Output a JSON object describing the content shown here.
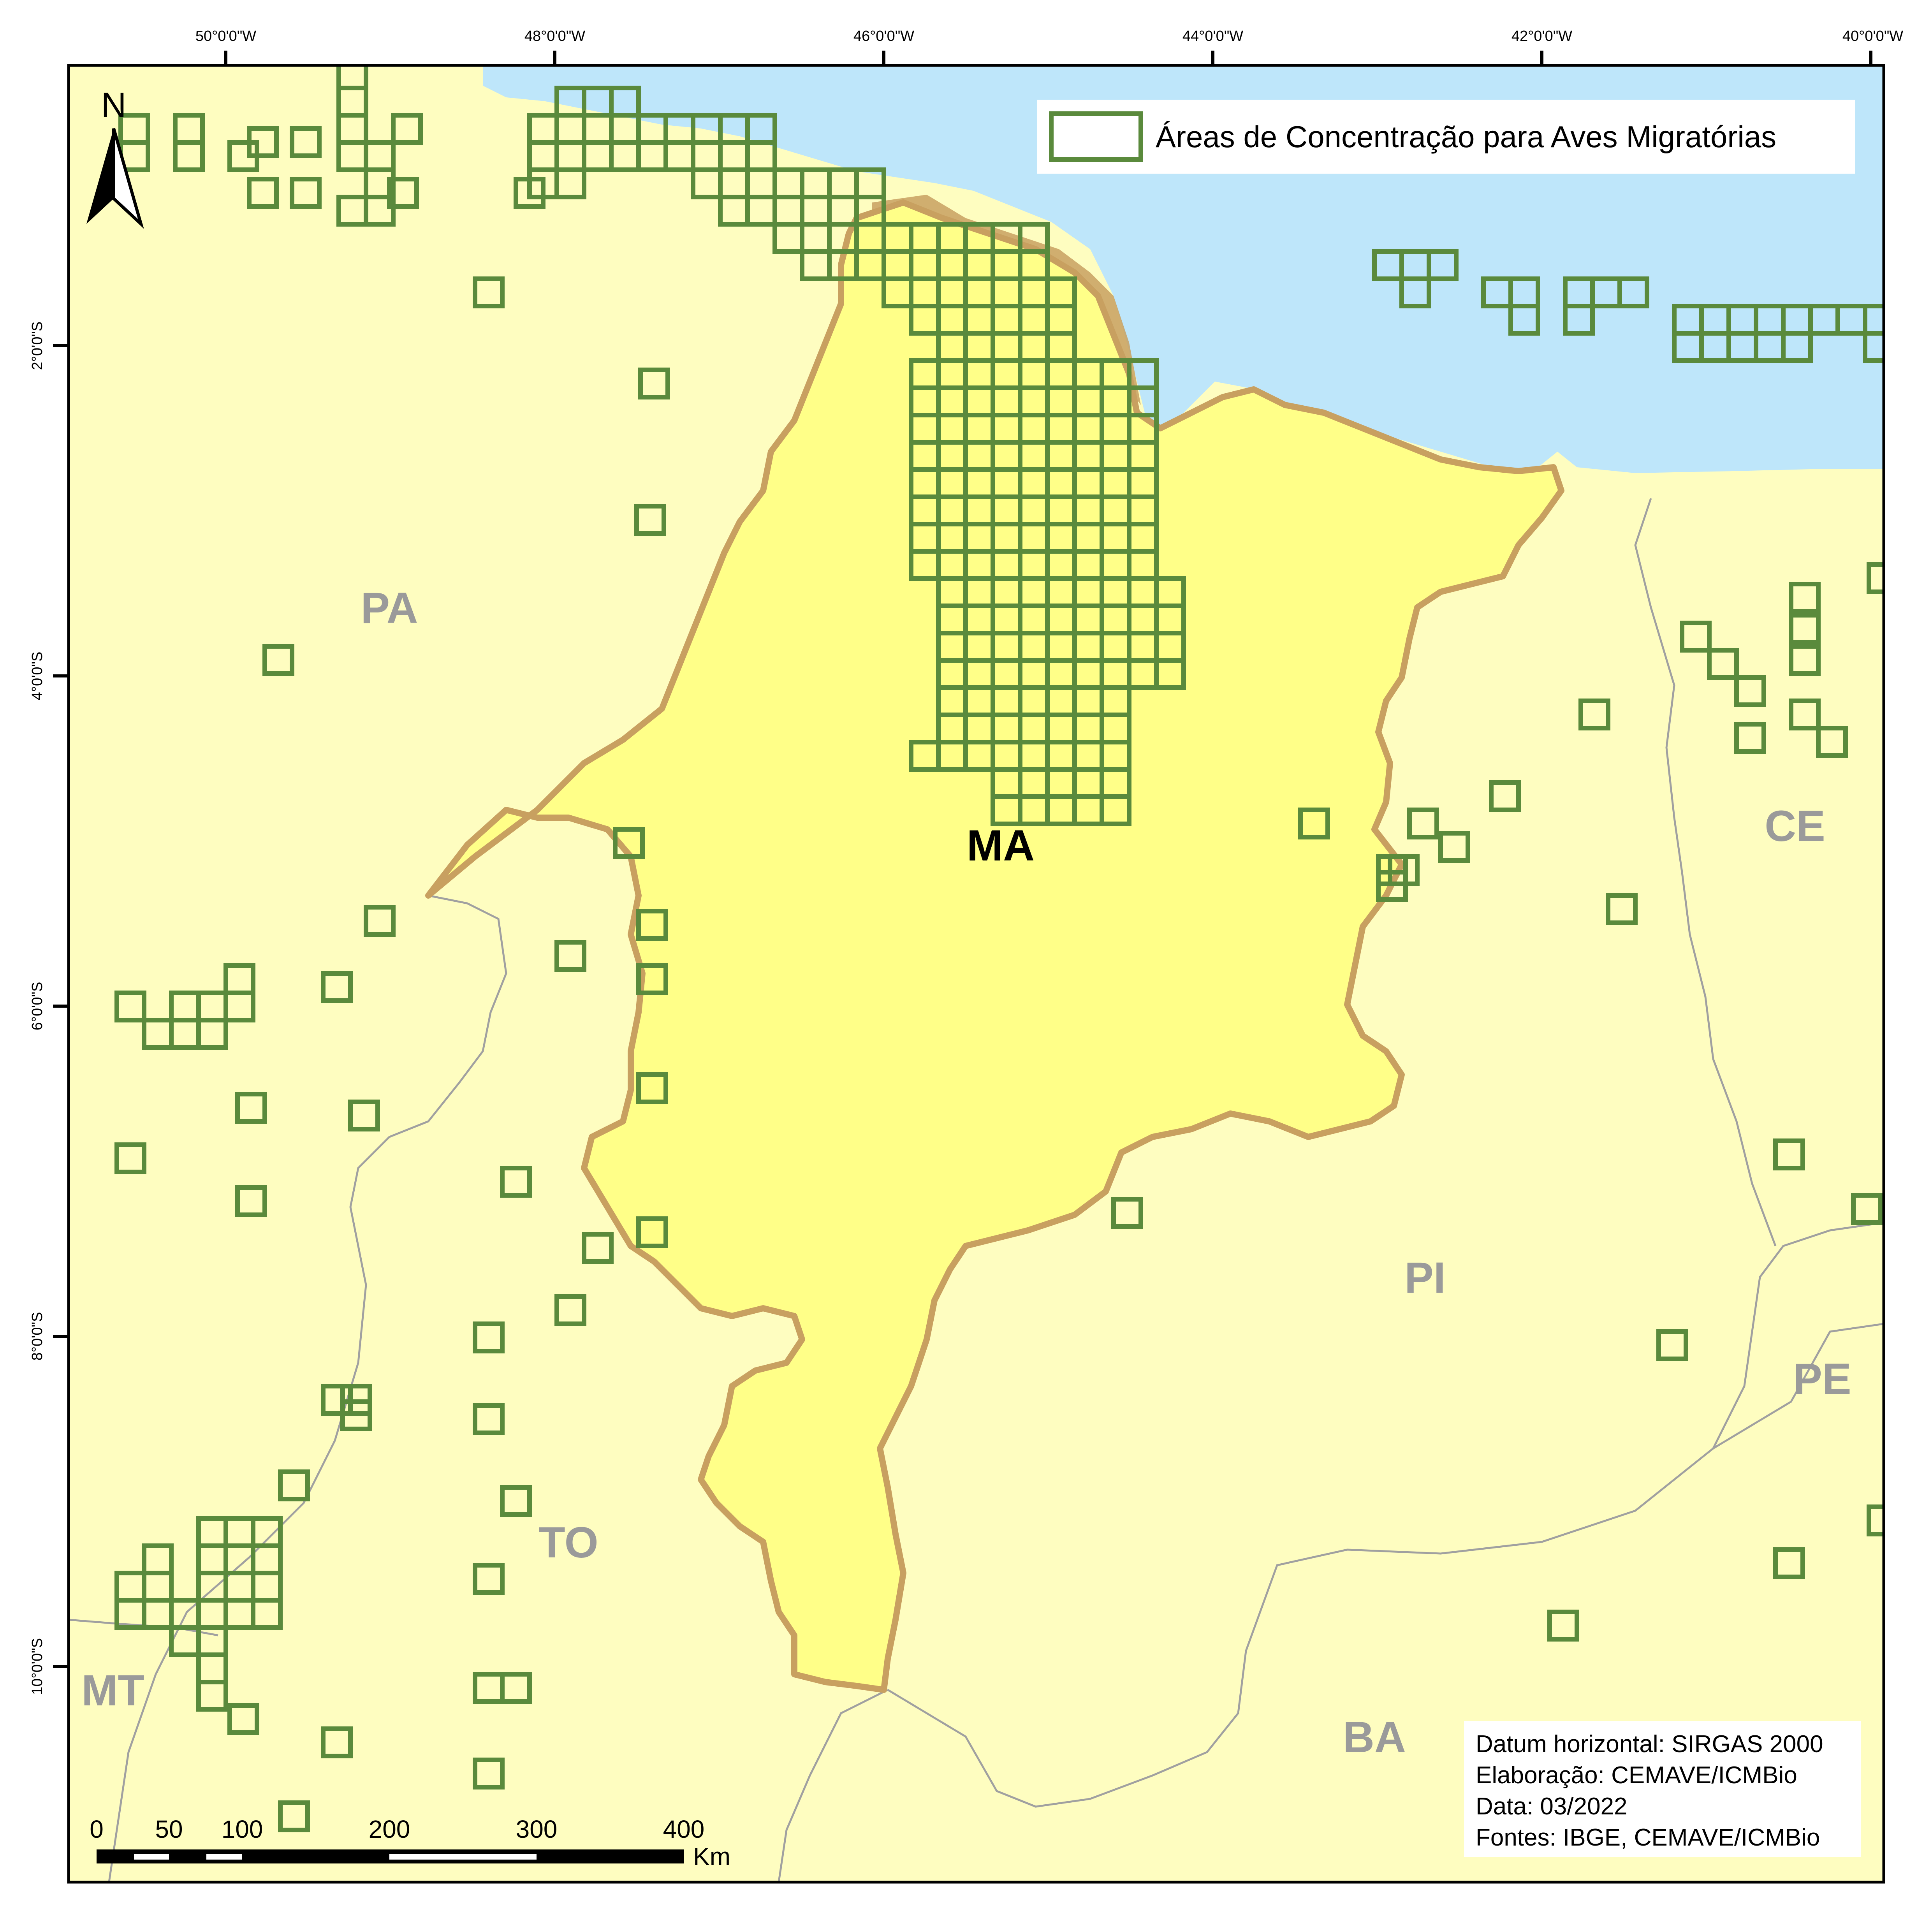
{
  "map": {
    "longitude_labels": [
      "50°0'0\"W",
      "48°0'0\"W",
      "46°0'0\"W",
      "44°0'0\"W",
      "42°0'0\"W",
      "40°0'0\"W"
    ],
    "latitude_labels": [
      "2°0'0\"S",
      "4°0'0\"S",
      "6°0'0\"S",
      "8°0'0\"S",
      "10°0'0\"S"
    ],
    "state_labels": [
      "PA",
      "MA",
      "CE",
      "PI",
      "PE",
      "TO",
      "MT",
      "BA"
    ],
    "highlighted_state": "MA",
    "colors": {
      "ocean": "#bee6fa",
      "land": "#fefdc0",
      "ma_fill": "#ffff88",
      "ma_border": "#c8a060",
      "grid_cell": "#5a8a3c",
      "state_label": "#9a9a9a"
    }
  },
  "north_arrow": {
    "label": "N"
  },
  "legend": {
    "item_label": "Áreas de Concentração para Aves Migratórias",
    "swatch_color": "#5a8a3c"
  },
  "credits": {
    "datum": "Datum horizontal: SIRGAS 2000",
    "author": "Elaboração: CEMAVE/ICMBio",
    "date": "Data: 03/2022",
    "sources": "Fontes: IBGE, CEMAVE/ICMBio"
  },
  "scale_bar": {
    "ticks": [
      "0",
      "50",
      "100",
      "200",
      "300",
      "400"
    ],
    "unit": "Km"
  }
}
